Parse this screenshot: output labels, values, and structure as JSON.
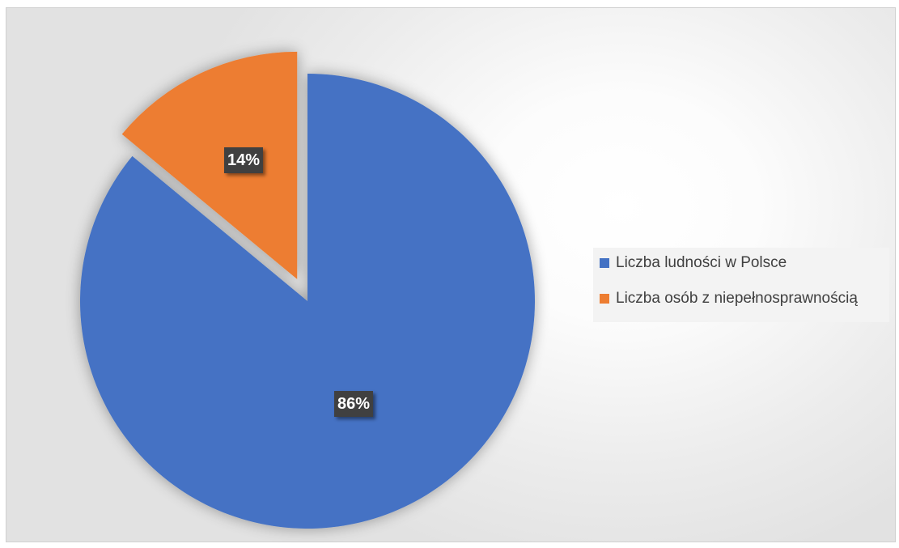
{
  "chart_data": {
    "type": "pie",
    "title": "",
    "slices": [
      {
        "label": "Liczba ludności w Polsce",
        "value": 86,
        "display": "86%",
        "color": "#4472C4",
        "exploded": false
      },
      {
        "label": "Liczba osób z niepełnosprawnością",
        "value": 14,
        "display": "14%",
        "color": "#ED7D31",
        "exploded": true
      }
    ],
    "start_angle_deg": 0,
    "direction": "clockwise-from-top",
    "legend_position": "right"
  }
}
